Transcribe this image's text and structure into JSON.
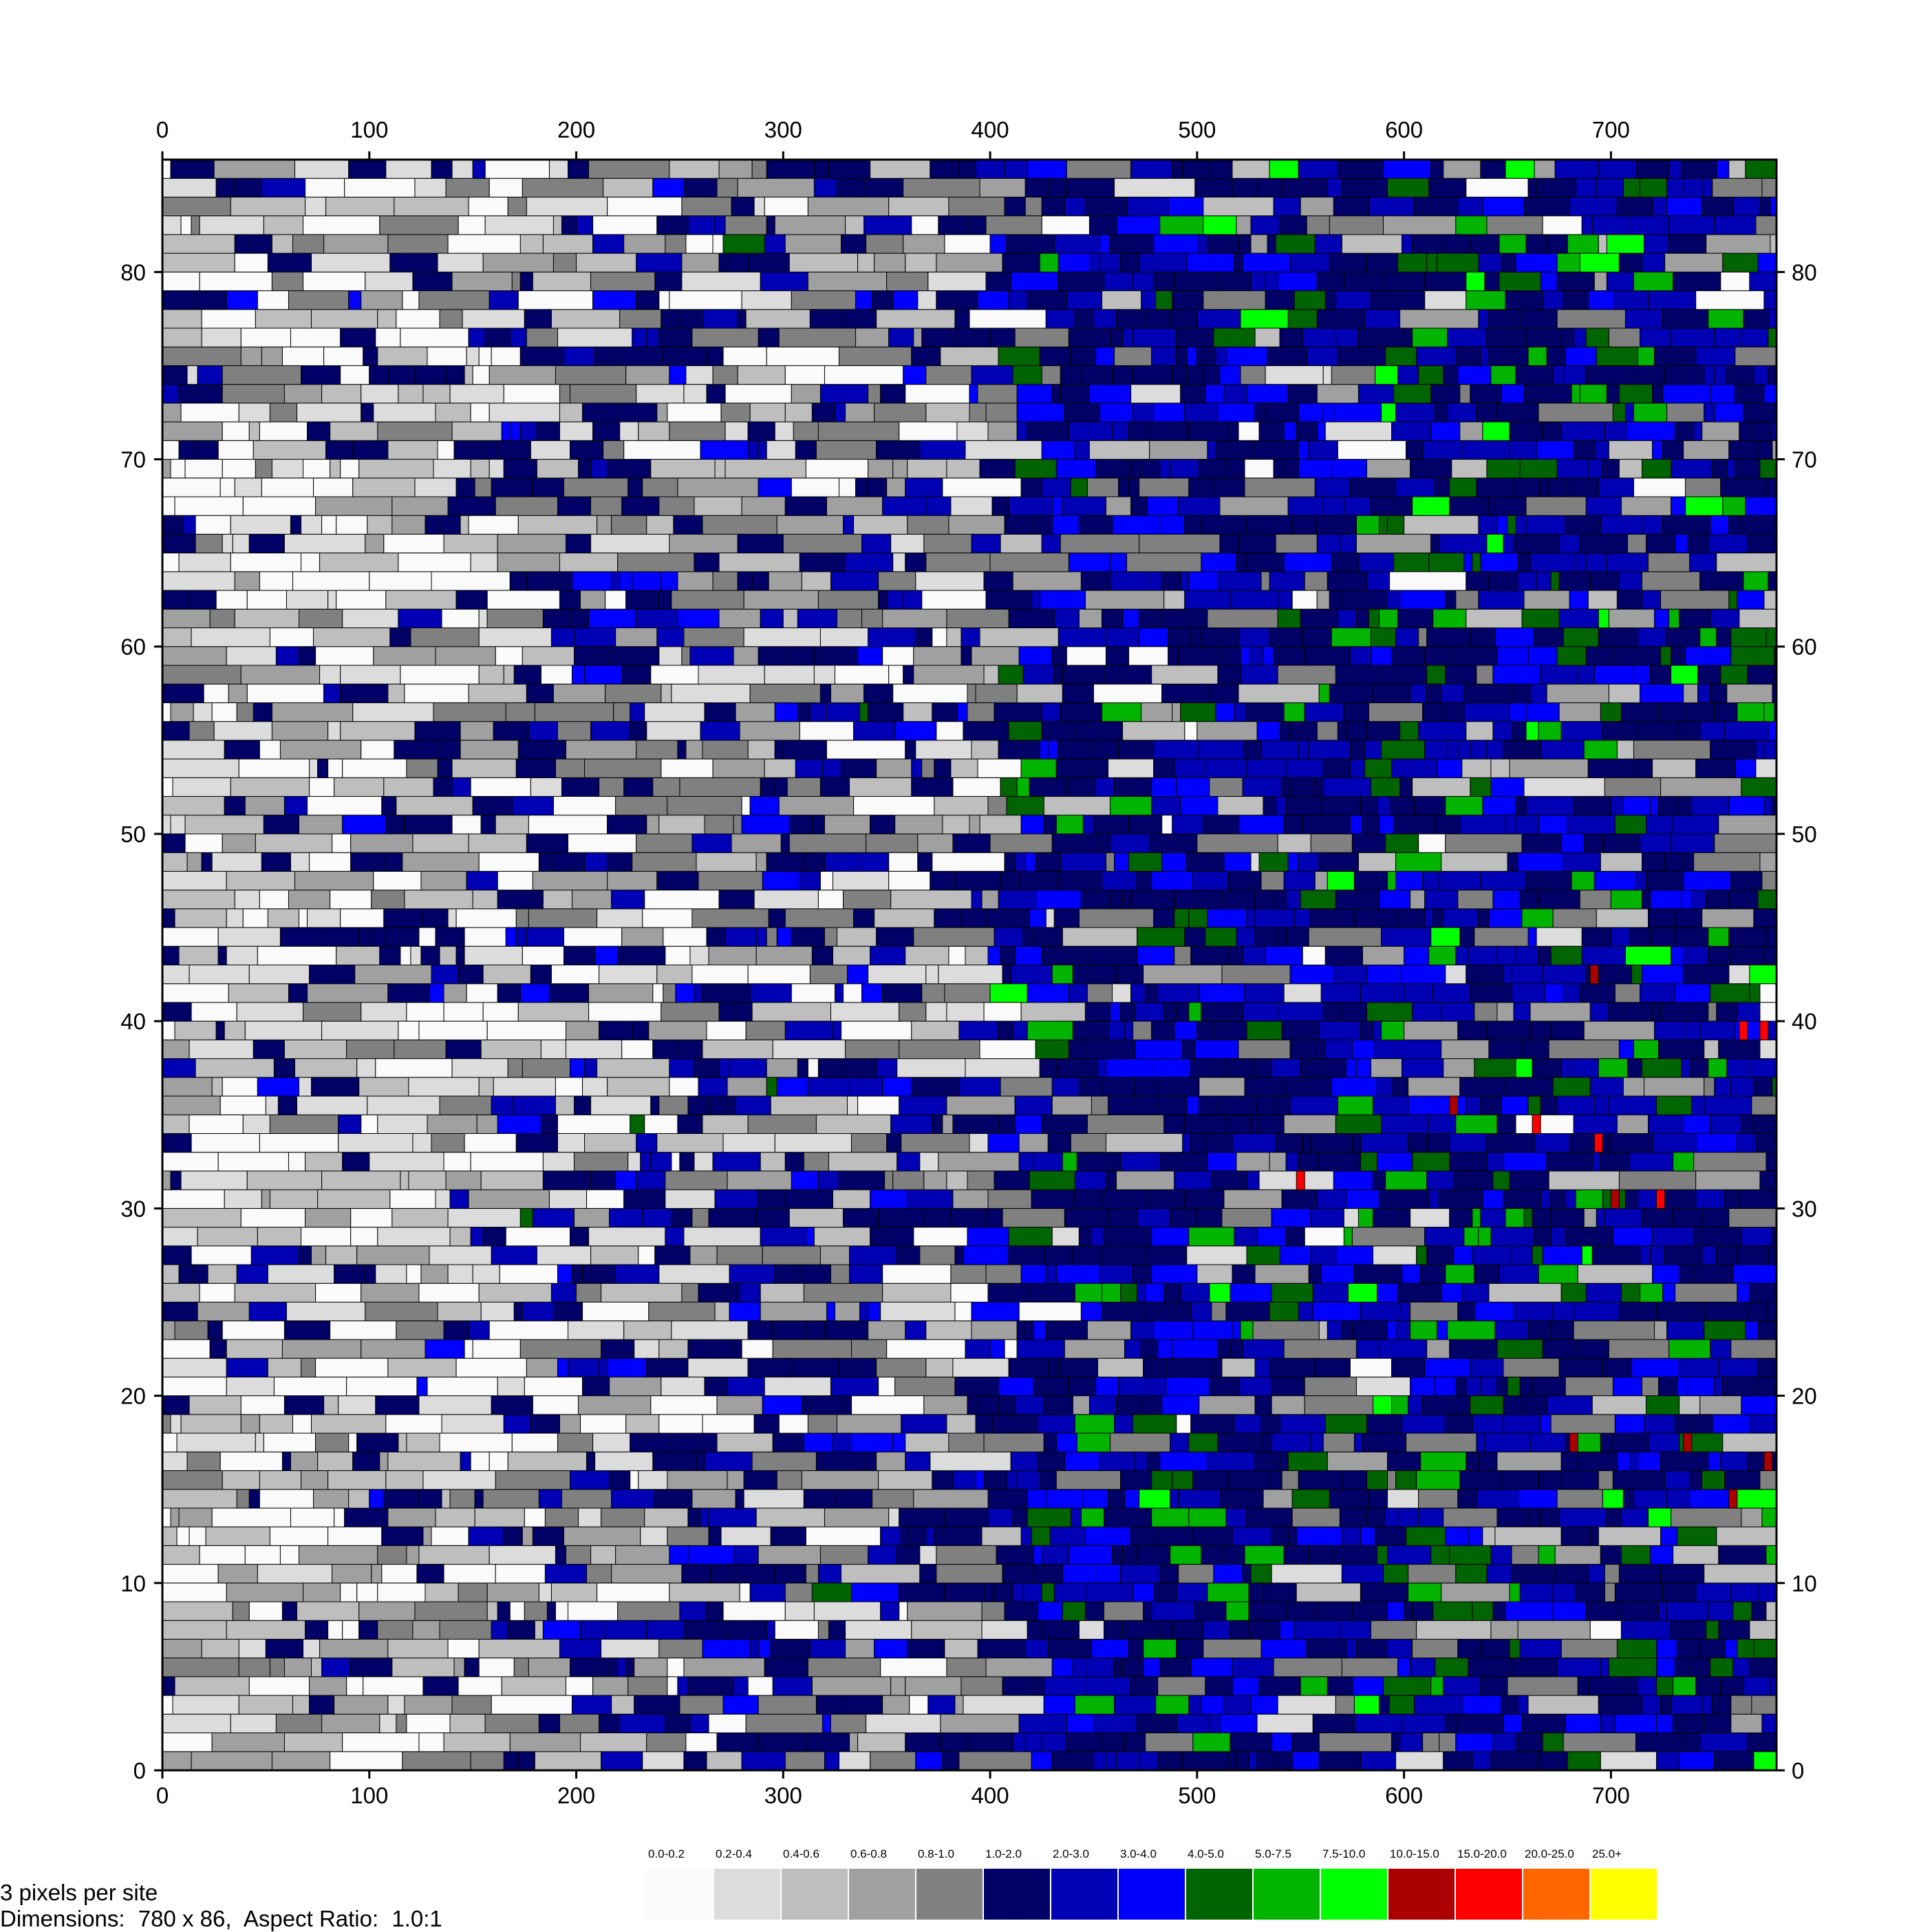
{
  "chart_data": {
    "type": "heatmap",
    "title": "",
    "xlabel": "",
    "ylabel": "",
    "xlim": [
      0,
      780
    ],
    "ylim": [
      0,
      86
    ],
    "x_ticks": [
      0,
      100,
      200,
      300,
      400,
      500,
      600,
      700
    ],
    "y_ticks": [
      0,
      10,
      20,
      30,
      40,
      50,
      60,
      70,
      80
    ],
    "x_tick_labels": [
      "0",
      "100",
      "200",
      "300",
      "400",
      "500",
      "600",
      "700"
    ],
    "y_tick_labels": [
      "0",
      "10",
      "20",
      "30",
      "40",
      "50",
      "60",
      "70",
      "80"
    ],
    "legend_position": "bottom-right",
    "legend": [
      {
        "label": "0.0-0.2",
        "color": "#fafafa"
      },
      {
        "label": "0.2-0.4",
        "color": "#dcdcdc"
      },
      {
        "label": "0.4-0.6",
        "color": "#bebebe"
      },
      {
        "label": "0.6-0.8",
        "color": "#a0a0a0"
      },
      {
        "label": "0.8-1.0",
        "color": "#808080"
      },
      {
        "label": "1.0-2.0",
        "color": "#000066"
      },
      {
        "label": "2.0-3.0",
        "color": "#0000b4"
      },
      {
        "label": "3.0-4.0",
        "color": "#0000ff"
      },
      {
        "label": "4.0-5.0",
        "color": "#006400"
      },
      {
        "label": "5.0-7.5",
        "color": "#00b400"
      },
      {
        "label": "7.5-10.0",
        "color": "#00ff00"
      },
      {
        "label": "10.0-15.0",
        "color": "#aa0000"
      },
      {
        "label": "15.0-20.0",
        "color": "#ff0000"
      },
      {
        "label": "20.0-25.0",
        "color": "#ff6600"
      },
      {
        "label": "25.0+",
        "color": "#ffff00"
      }
    ],
    "row_mix_note": "",
    "region_profile": [
      {
        "x_range": [
          0,
          160
        ],
        "dominant_classes": [
          0,
          1,
          2,
          3,
          4,
          5
        ]
      },
      {
        "x_range": [
          160,
          400
        ],
        "dominant_classes": [
          1,
          2,
          3,
          4,
          5,
          6
        ]
      },
      {
        "x_range": [
          400,
          780
        ],
        "dominant_classes": [
          5,
          6,
          7,
          8,
          9
        ]
      }
    ],
    "high_value_cells": [
      {
        "x": 762,
        "y": 39,
        "class": 12
      },
      {
        "x": 772,
        "y": 39,
        "class": 12
      },
      {
        "x": 690,
        "y": 42,
        "class": 11
      },
      {
        "x": 622,
        "y": 35,
        "class": 11
      },
      {
        "x": 662,
        "y": 34,
        "class": 12
      },
      {
        "x": 692,
        "y": 33,
        "class": 12
      },
      {
        "x": 548,
        "y": 31,
        "class": 12
      },
      {
        "x": 700,
        "y": 30,
        "class": 11
      },
      {
        "x": 722,
        "y": 30,
        "class": 12
      },
      {
        "x": 680,
        "y": 17,
        "class": 11
      },
      {
        "x": 735,
        "y": 17,
        "class": 11
      },
      {
        "x": 774,
        "y": 16,
        "class": 11
      },
      {
        "x": 757,
        "y": 14,
        "class": 11
      }
    ]
  },
  "footer": {
    "pixels_per_site": "3 pixels per site",
    "dimensions_label": "Dimensions:",
    "dimensions_value": "780 x 86,",
    "aspect_label": "Aspect Ratio:",
    "aspect_value": "1.0:1"
  },
  "colors": {
    "axis": "#000000",
    "background": "#ffffff",
    "cell_border": "#000000"
  }
}
